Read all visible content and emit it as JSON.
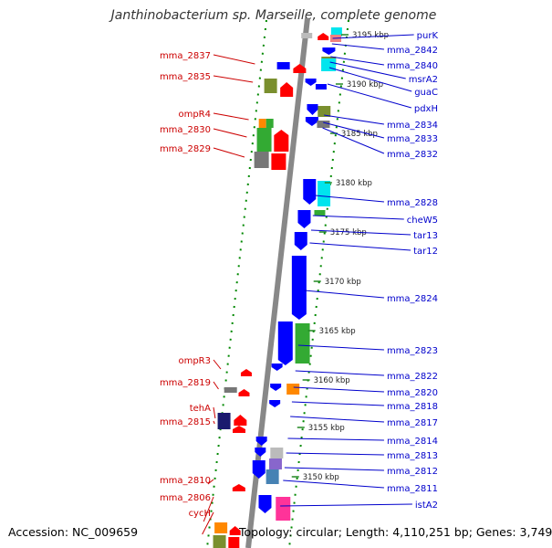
{
  "title": "Janthinobacterium sp. Marseille, complete genome",
  "footer": {
    "accession": "Accession: NC_009659",
    "stats": "Topology: circular; Length: 4,110,251 bp; Genes: 3,749"
  },
  "colors": {
    "label_left": "#cc0000",
    "label_right": "#0000cc",
    "backbone": "#888888",
    "ticks": "#008800",
    "forward": "#ff0000",
    "reverse": "#0000ff",
    "green": "#33aa33",
    "olive": "#7a8f2e",
    "cyan": "#00e5ee",
    "orange": "#ff8800",
    "pink": "#ff3399",
    "gray": "#777777",
    "steelblue": "#4682b4",
    "navy": "#1a1a6e",
    "lavender": "#8866cc",
    "salmon": "#f08080",
    "silver": "#bbbbbb"
  },
  "kbp_labels": [
    "3195 kbp",
    "3190 kbp",
    "3185 kbp",
    "3180 kbp",
    "3175 kbp",
    "3170 kbp",
    "3165 kbp",
    "3160 kbp",
    "3155 kbp",
    "3150 kbp"
  ],
  "left_genes": [
    "mma_2837",
    "mma_2835",
    "ompR4",
    "mma_2830",
    "mma_2829",
    "ompR3",
    "mma_2819",
    "tehA",
    "mma_2815",
    "mma_2810",
    "mma_2806",
    "cycH"
  ],
  "right_genes": [
    "purK",
    "mma_2842",
    "mma_2840",
    "msrA2",
    "guaC",
    "pdxH",
    "mma_2834",
    "mma_2833",
    "mma_2832",
    "mma_2828",
    "cheW5",
    "tar13",
    "tar12",
    "mma_2824",
    "mma_2823",
    "mma_2822",
    "mma_2820",
    "mma_2818",
    "mma_2817",
    "mma_2814",
    "mma_2813",
    "mma_2812",
    "mma_2811",
    "istA2"
  ]
}
